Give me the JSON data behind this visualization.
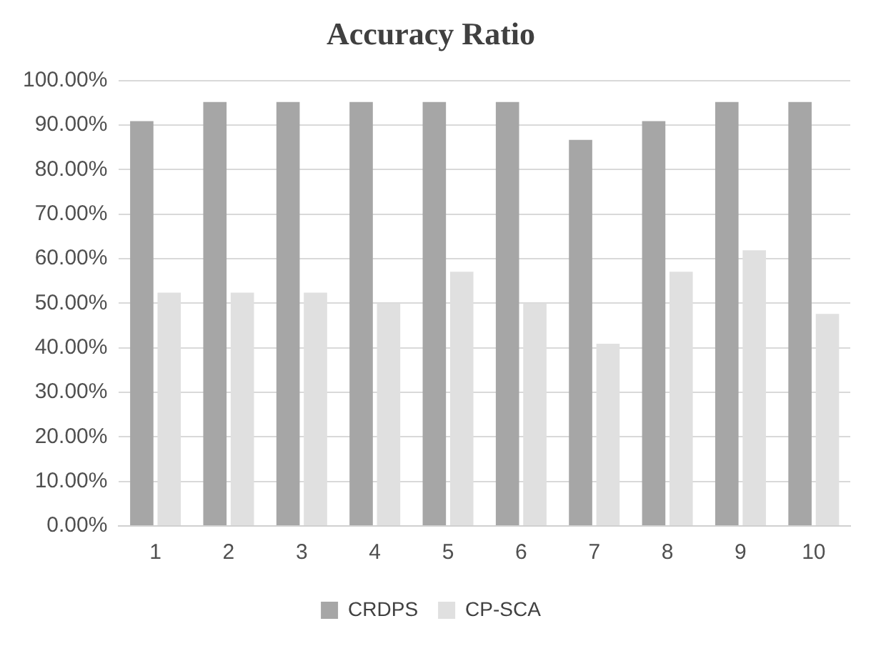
{
  "chart_data": {
    "type": "bar",
    "title": "Accuracy Ratio",
    "categories": [
      "1",
      "2",
      "3",
      "4",
      "5",
      "6",
      "7",
      "8",
      "9",
      "10"
    ],
    "series": [
      {
        "name": "CRDPS",
        "color": "#a6a6a6",
        "values": [
          90.9,
          95.2,
          95.2,
          95.2,
          95.2,
          95.2,
          86.7,
          90.9,
          95.2,
          95.2
        ]
      },
      {
        "name": "CP-SCA",
        "color": "#e0e0e0",
        "values": [
          52.4,
          52.4,
          52.4,
          50,
          57.1,
          50,
          40.9,
          57.1,
          61.9,
          47.6
        ]
      }
    ],
    "ylim": [
      0,
      100
    ],
    "yticks": [
      {
        "value": 0,
        "label": "0.00%"
      },
      {
        "value": 10,
        "label": "10.00%"
      },
      {
        "value": 20,
        "label": "20.00%"
      },
      {
        "value": 30,
        "label": "30.00%"
      },
      {
        "value": 40,
        "label": "40.00%"
      },
      {
        "value": 50,
        "label": "50.00%"
      },
      {
        "value": 60,
        "label": "60.00%"
      },
      {
        "value": 70,
        "label": "70.00%"
      },
      {
        "value": 80,
        "label": "80.00%"
      },
      {
        "value": 90,
        "label": "90.00%"
      },
      {
        "value": 100,
        "label": "100.00%"
      }
    ],
    "grid": "y",
    "legend": "bottom"
  }
}
